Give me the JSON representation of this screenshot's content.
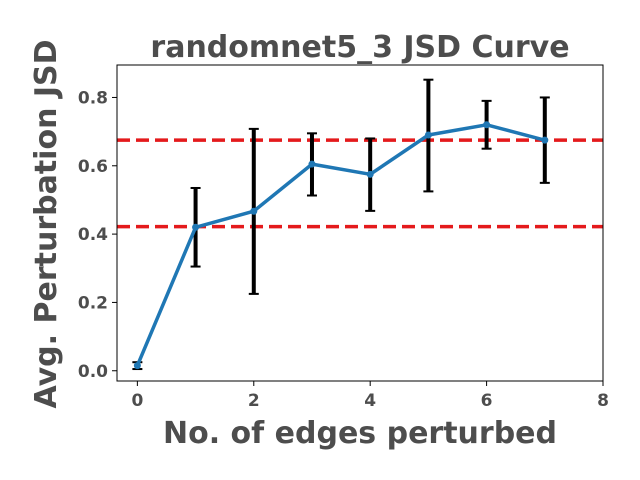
{
  "chart_data": {
    "type": "line",
    "title": "randomnet5_3 JSD Curve",
    "xlabel": "No. of edges perturbed",
    "ylabel": "Avg. Perturbation JSD",
    "xlim": [
      -0.35,
      8.0
    ],
    "ylim": [
      -0.03,
      0.895
    ],
    "xticks": [
      0,
      2,
      4,
      6,
      8
    ],
    "yticks": [
      0.0,
      0.2,
      0.4,
      0.6,
      0.8
    ],
    "xtick_labels": [
      "0",
      "2",
      "4",
      "6",
      "8"
    ],
    "ytick_labels": [
      "0.0",
      "0.2",
      "0.4",
      "0.6",
      "0.8"
    ],
    "grid": false,
    "series": [
      {
        "color": "#1f77b4",
        "x": [
          0,
          1,
          2,
          3,
          4,
          5,
          6,
          7
        ],
        "y": [
          0.015,
          0.42,
          0.467,
          0.605,
          0.575,
          0.69,
          0.72,
          0.675
        ],
        "yerr_low": [
          0.005,
          0.305,
          0.225,
          0.513,
          0.468,
          0.525,
          0.65,
          0.55
        ],
        "yerr_high": [
          0.025,
          0.535,
          0.708,
          0.695,
          0.68,
          0.852,
          0.79,
          0.8
        ]
      }
    ],
    "reference_lines": [
      {
        "y": 0.675,
        "color": "#e41a1c",
        "style": "dashed"
      },
      {
        "y": 0.422,
        "color": "#e41a1c",
        "style": "dashed"
      }
    ]
  }
}
